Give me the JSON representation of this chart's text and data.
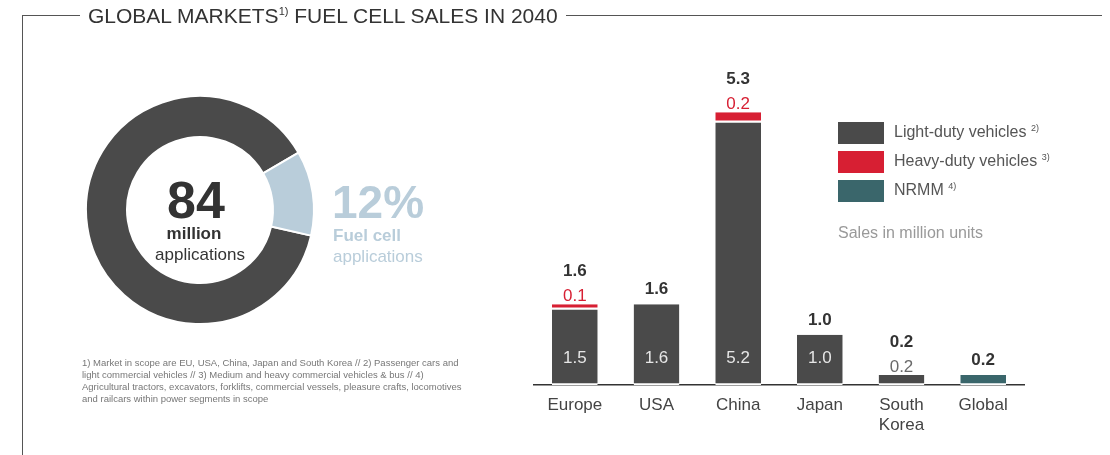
{
  "chart_data": [
    {
      "type": "donut",
      "title": "GLOBAL MARKETS$^{1)}$ FUEL CELL SALES IN 2040",
      "categories": [
        null,
        "Fuel cell applications"
      ],
      "values": [
        88,
        12
      ],
      "colors": [
        "#4a4a4a",
        "#b9cdda"
      ],
      "value_labels": [
        null,
        "12%"
      ],
      "annotations": [
        "84",
        "million",
        "applications",
        "1) Market in scope are EU, USA, China, Japan and South Korea // 2) Passenger cars and light commercial vehicles // 3) Medium and heavy commercial vehicles & bus // 4) Agricultural tractors, excavators, forklifts, commercial vessels, pleasure crafts, locomotives and railcars within power segments in scope"
      ],
      "legend": false
    },
    {
      "type": "bar",
      "stacked": true,
      "categories": [
        "Europe",
        "USA",
        "China",
        "Japan",
        "South Korea",
        "Global"
      ],
      "series": [
        {
          "name": "Light-duty vehicles $^{2)}$",
          "color": "#4a4a4a",
          "values": [
            1.5,
            1.6,
            5.2,
            1.0,
            0.2,
            null
          ],
          "value_labels": [
            "1.5",
            "1.6",
            "5.2",
            "1.0",
            "0.2",
            null
          ]
        },
        {
          "name": "Heavy-duty vehicles $^{3)}$",
          "color": "#d71f33",
          "values": [
            0.1,
            null,
            0.2,
            null,
            null,
            null
          ],
          "value_labels": [
            "0.1",
            null,
            "0.2",
            null,
            null,
            null
          ]
        },
        {
          "name": "NRMM $^{4)}$",
          "color": "#3a666b",
          "values": [
            null,
            null,
            null,
            null,
            null,
            0.2
          ]
        }
      ],
      "totals": [
        "1.6",
        "1.6",
        "5.3",
        "1.0",
        "0.2",
        "0.2"
      ],
      "tick_labels": "x",
      "grid": false,
      "legend": "top right",
      "annotations": [
        "Sales in million units"
      ]
    }
  ]
}
